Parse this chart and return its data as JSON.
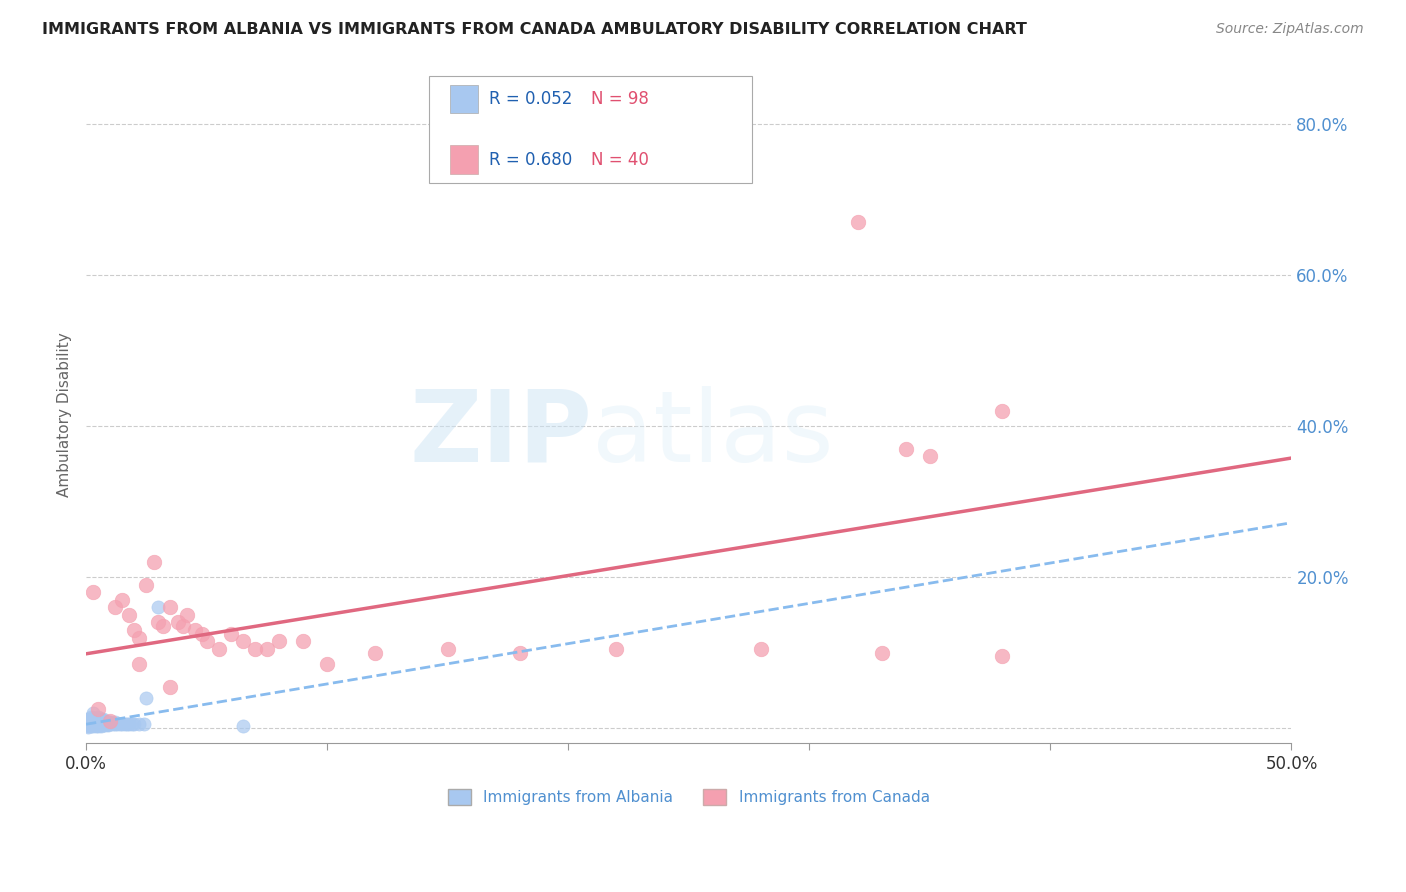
{
  "title": "IMMIGRANTS FROM ALBANIA VS IMMIGRANTS FROM CANADA AMBULATORY DISABILITY CORRELATION CHART",
  "source": "Source: ZipAtlas.com",
  "ylabel": "Ambulatory Disability",
  "xlim": [
    0.0,
    0.5
  ],
  "ylim": [
    -0.02,
    0.85
  ],
  "albania_color": "#a8c8f0",
  "canada_color": "#f4a0b0",
  "albania_R": 0.052,
  "albania_N": 98,
  "canada_R": 0.68,
  "canada_N": 40,
  "albania_label": "Immigrants from Albania",
  "canada_label": "Immigrants from Canada",
  "legend_color": "#2060b0",
  "watermark_zip": "ZIP",
  "watermark_atlas": "atlas",
  "background_color": "#ffffff",
  "grid_color": "#cccccc",
  "title_color": "#222222",
  "right_axis_color": "#5090d0",
  "albania_trend_color": "#88bbee",
  "canada_trend_color": "#e06880",
  "albania_scatter": [
    [
      0.001,
      0.005
    ],
    [
      0.001,
      0.008
    ],
    [
      0.001,
      0.003
    ],
    [
      0.001,
      0.01
    ],
    [
      0.001,
      0.006
    ],
    [
      0.001,
      0.012
    ],
    [
      0.001,
      0.004
    ],
    [
      0.001,
      0.007
    ],
    [
      0.001,
      0.002
    ],
    [
      0.001,
      0.009
    ],
    [
      0.002,
      0.006
    ],
    [
      0.002,
      0.01
    ],
    [
      0.002,
      0.004
    ],
    [
      0.002,
      0.008
    ],
    [
      0.002,
      0.012
    ],
    [
      0.002,
      0.005
    ],
    [
      0.002,
      0.007
    ],
    [
      0.002,
      0.003
    ],
    [
      0.002,
      0.015
    ],
    [
      0.002,
      0.009
    ],
    [
      0.003,
      0.005
    ],
    [
      0.003,
      0.008
    ],
    [
      0.003,
      0.012
    ],
    [
      0.003,
      0.004
    ],
    [
      0.003,
      0.007
    ],
    [
      0.003,
      0.01
    ],
    [
      0.003,
      0.003
    ],
    [
      0.003,
      0.006
    ],
    [
      0.003,
      0.02
    ],
    [
      0.003,
      0.014
    ],
    [
      0.004,
      0.006
    ],
    [
      0.004,
      0.01
    ],
    [
      0.004,
      0.004
    ],
    [
      0.004,
      0.008
    ],
    [
      0.004,
      0.012
    ],
    [
      0.004,
      0.005
    ],
    [
      0.004,
      0.007
    ],
    [
      0.004,
      0.003
    ],
    [
      0.004,
      0.009
    ],
    [
      0.004,
      0.011
    ],
    [
      0.005,
      0.006
    ],
    [
      0.005,
      0.008
    ],
    [
      0.005,
      0.004
    ],
    [
      0.005,
      0.01
    ],
    [
      0.005,
      0.015
    ],
    [
      0.005,
      0.005
    ],
    [
      0.005,
      0.007
    ],
    [
      0.005,
      0.003
    ],
    [
      0.005,
      0.009
    ],
    [
      0.005,
      0.012
    ],
    [
      0.006,
      0.005
    ],
    [
      0.006,
      0.008
    ],
    [
      0.006,
      0.004
    ],
    [
      0.006,
      0.01
    ],
    [
      0.006,
      0.012
    ],
    [
      0.006,
      0.006
    ],
    [
      0.006,
      0.007
    ],
    [
      0.006,
      0.003
    ],
    [
      0.006,
      0.009
    ],
    [
      0.006,
      0.011
    ],
    [
      0.007,
      0.006
    ],
    [
      0.007,
      0.008
    ],
    [
      0.007,
      0.01
    ],
    [
      0.007,
      0.012
    ],
    [
      0.007,
      0.005
    ],
    [
      0.007,
      0.007
    ],
    [
      0.007,
      0.004
    ],
    [
      0.007,
      0.009
    ],
    [
      0.008,
      0.005
    ],
    [
      0.008,
      0.008
    ],
    [
      0.008,
      0.004
    ],
    [
      0.008,
      0.01
    ],
    [
      0.008,
      0.006
    ],
    [
      0.008,
      0.007
    ],
    [
      0.009,
      0.005
    ],
    [
      0.009,
      0.008
    ],
    [
      0.009,
      0.004
    ],
    [
      0.009,
      0.007
    ],
    [
      0.009,
      0.006
    ],
    [
      0.01,
      0.005
    ],
    [
      0.01,
      0.008
    ],
    [
      0.01,
      0.007
    ],
    [
      0.011,
      0.005
    ],
    [
      0.012,
      0.006
    ],
    [
      0.012,
      0.008
    ],
    [
      0.013,
      0.005
    ],
    [
      0.014,
      0.006
    ],
    [
      0.015,
      0.005
    ],
    [
      0.016,
      0.006
    ],
    [
      0.017,
      0.005
    ],
    [
      0.018,
      0.005
    ],
    [
      0.019,
      0.006
    ],
    [
      0.02,
      0.005
    ],
    [
      0.022,
      0.006
    ],
    [
      0.024,
      0.005
    ],
    [
      0.025,
      0.04
    ],
    [
      0.065,
      0.003
    ],
    [
      0.03,
      0.16
    ]
  ],
  "canada_scatter": [
    [
      0.003,
      0.18
    ],
    [
      0.005,
      0.025
    ],
    [
      0.01,
      0.01
    ],
    [
      0.012,
      0.16
    ],
    [
      0.015,
      0.17
    ],
    [
      0.018,
      0.15
    ],
    [
      0.02,
      0.13
    ],
    [
      0.022,
      0.12
    ],
    [
      0.025,
      0.19
    ],
    [
      0.028,
      0.22
    ],
    [
      0.03,
      0.14
    ],
    [
      0.032,
      0.135
    ],
    [
      0.035,
      0.16
    ],
    [
      0.038,
      0.14
    ],
    [
      0.04,
      0.135
    ],
    [
      0.042,
      0.15
    ],
    [
      0.045,
      0.13
    ],
    [
      0.048,
      0.125
    ],
    [
      0.05,
      0.115
    ],
    [
      0.055,
      0.105
    ],
    [
      0.06,
      0.125
    ],
    [
      0.065,
      0.115
    ],
    [
      0.07,
      0.105
    ],
    [
      0.075,
      0.105
    ],
    [
      0.08,
      0.115
    ],
    [
      0.09,
      0.115
    ],
    [
      0.1,
      0.085
    ],
    [
      0.12,
      0.1
    ],
    [
      0.15,
      0.105
    ],
    [
      0.18,
      0.1
    ],
    [
      0.022,
      0.085
    ],
    [
      0.035,
      0.055
    ],
    [
      0.22,
      0.105
    ],
    [
      0.28,
      0.105
    ],
    [
      0.33,
      0.1
    ],
    [
      0.38,
      0.095
    ],
    [
      0.34,
      0.37
    ],
    [
      0.38,
      0.42
    ],
    [
      0.32,
      0.67
    ],
    [
      0.35,
      0.36
    ]
  ]
}
